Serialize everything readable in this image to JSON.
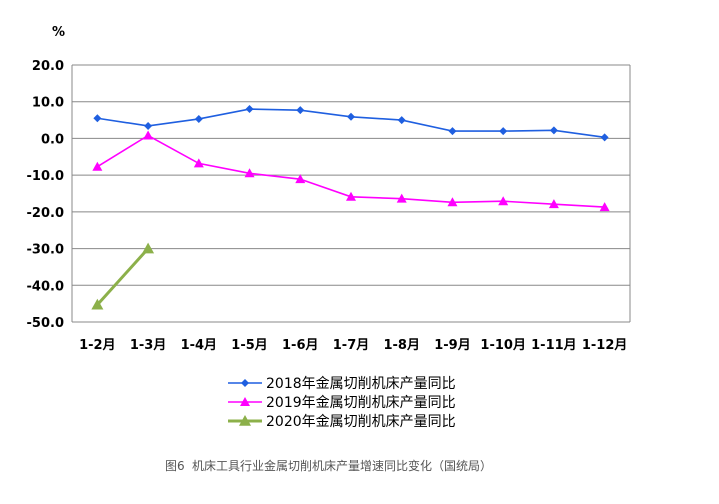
{
  "chart_data": {
    "type": "line",
    "unit_label": "%",
    "categories": [
      "1-2月",
      "1-3月",
      "1-4月",
      "1-5月",
      "1-6月",
      "1-7月",
      "1-8月",
      "1-9月",
      "1-10月",
      "1-11月",
      "1-12月"
    ],
    "ylim": [
      -50,
      20
    ],
    "yticks": [
      "20.0",
      "10.0",
      "0.0",
      "-10.0",
      "-20.0",
      "-30.0",
      "-40.0",
      "-50.0"
    ],
    "grid": true,
    "legend_position": "bottom",
    "series": [
      {
        "name": "2018年金属切削机床产量同比",
        "color": "#1f5fe0",
        "marker": "diamond",
        "values": [
          5.5,
          3.4,
          5.3,
          8.0,
          7.7,
          5.9,
          5.0,
          2.0,
          2.0,
          2.2,
          0.3
        ]
      },
      {
        "name": "2019年金属切削机床产量同比",
        "color": "#ff00ff",
        "marker": "triangle",
        "values": [
          -7.7,
          0.8,
          -6.8,
          -9.5,
          -11.1,
          -15.9,
          -16.4,
          -17.4,
          -17.1,
          -17.9,
          -18.7
        ]
      },
      {
        "name": "2020年金属切削机床产量同比",
        "color": "#8cb04a",
        "marker": "triangle",
        "values": [
          -45.3,
          -30.0,
          null,
          null,
          null,
          null,
          null,
          null,
          null,
          null,
          null
        ]
      }
    ]
  },
  "caption": {
    "figure_no": "图6",
    "text": "机床工具行业金属切削机床产量增速同比变化（国统局）"
  }
}
